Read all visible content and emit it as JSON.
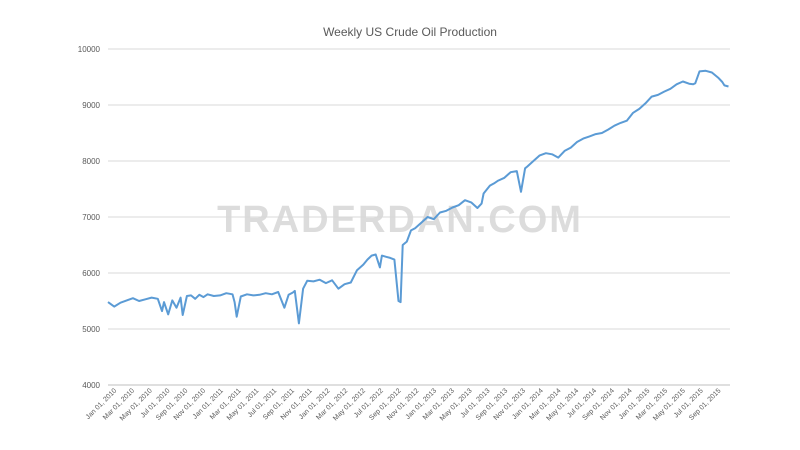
{
  "chart_data": {
    "type": "line",
    "title": "Weekly US Crude Oil Production",
    "xlabel": "",
    "ylabel": "",
    "ylim": [
      4000,
      10000
    ],
    "yticks": [
      "4000",
      "5000",
      "6000",
      "7000",
      "8000",
      "9000",
      "10000"
    ],
    "grid": true,
    "legend": "none",
    "watermark": "TRADERDAN.COM",
    "color": "#5b9bd5",
    "xlim": [
      "2010-01-01",
      "2015-09-30"
    ],
    "xtick_labels": [
      "Jan 01, 2010",
      "Mar 01, 2010",
      "May 01, 2010",
      "Jul 01, 2010",
      "Sep 01, 2010",
      "Nov 01, 2010",
      "Jan 01, 2011",
      "Mar 01, 2011",
      "May 01, 2011",
      "Jul 01, 2011",
      "Sep 01, 2011",
      "Nov 01, 2011",
      "Jan 01, 2012",
      "Mar 01, 2012",
      "May 01, 2012",
      "Jul 01, 2012",
      "Sep 01, 2012",
      "Nov 01, 2012",
      "Jan 01, 2013",
      "Mar 01, 2013",
      "May 01, 2013",
      "Jul 01, 2013",
      "Sep 01, 2013",
      "Nov 01, 2013",
      "Jan 01, 2014",
      "Mar 01, 2014",
      "May 01, 2014",
      "Jul 01, 2014",
      "Sep 01, 2014",
      "Nov 01, 2014",
      "Jan 01, 2015",
      "Mar 01, 2015",
      "May 01, 2015",
      "Jul 01, 2015",
      "Sep 01, 2015"
    ],
    "series": [
      {
        "name": "",
        "x": [
          "2010-01-01",
          "2010-01-22",
          "2010-02-12",
          "2010-03-05",
          "2010-03-26",
          "2010-04-16",
          "2010-05-07",
          "2010-05-28",
          "2010-06-18",
          "2010-07-02",
          "2010-07-09",
          "2010-07-23",
          "2010-08-06",
          "2010-08-20",
          "2010-09-03",
          "2010-09-10",
          "2010-09-24",
          "2010-10-08",
          "2010-10-22",
          "2010-11-05",
          "2010-11-19",
          "2010-12-03",
          "2010-12-24",
          "2011-01-14",
          "2011-02-04",
          "2011-02-25",
          "2011-03-04",
          "2011-03-11",
          "2011-03-25",
          "2011-04-15",
          "2011-05-06",
          "2011-05-27",
          "2011-06-17",
          "2011-07-08",
          "2011-07-29",
          "2011-08-19",
          "2011-09-02",
          "2011-09-16",
          "2011-09-23",
          "2011-10-07",
          "2011-10-21",
          "2011-11-04",
          "2011-11-25",
          "2011-12-16",
          "2012-01-06",
          "2012-01-27",
          "2012-02-17",
          "2012-03-09",
          "2012-03-30",
          "2012-04-20",
          "2012-05-11",
          "2012-05-25",
          "2012-06-08",
          "2012-06-22",
          "2012-07-06",
          "2012-07-13",
          "2012-07-27",
          "2012-08-10",
          "2012-08-24",
          "2012-09-07",
          "2012-09-14",
          "2012-09-21",
          "2012-10-05",
          "2012-10-19",
          "2012-11-02",
          "2012-11-23",
          "2012-12-14",
          "2013-01-04",
          "2013-01-25",
          "2013-02-15",
          "2013-03-08",
          "2013-03-29",
          "2013-04-19",
          "2013-05-10",
          "2013-05-31",
          "2013-06-14",
          "2013-06-21",
          "2013-07-12",
          "2013-07-26",
          "2013-08-09",
          "2013-08-30",
          "2013-09-20",
          "2013-10-11",
          "2013-10-25",
          "2013-11-08",
          "2013-11-15",
          "2013-12-06",
          "2013-12-27",
          "2014-01-17",
          "2014-02-07",
          "2014-02-28",
          "2014-03-21",
          "2014-04-11",
          "2014-05-02",
          "2014-05-23",
          "2014-06-13",
          "2014-07-04",
          "2014-07-25",
          "2014-08-15",
          "2014-09-05",
          "2014-09-26",
          "2014-10-17",
          "2014-11-07",
          "2014-11-28",
          "2014-12-19",
          "2015-01-09",
          "2015-01-30",
          "2015-02-20",
          "2015-03-13",
          "2015-04-03",
          "2015-04-24",
          "2015-05-15",
          "2015-05-29",
          "2015-06-05",
          "2015-06-19",
          "2015-07-10",
          "2015-07-31",
          "2015-08-21",
          "2015-09-04",
          "2015-09-11",
          "2015-09-25"
        ],
        "y": [
          5480,
          5400,
          5470,
          5510,
          5550,
          5500,
          5530,
          5560,
          5540,
          5320,
          5480,
          5260,
          5510,
          5380,
          5560,
          5250,
          5590,
          5600,
          5540,
          5610,
          5570,
          5620,
          5590,
          5600,
          5640,
          5620,
          5480,
          5220,
          5580,
          5620,
          5600,
          5610,
          5640,
          5620,
          5660,
          5380,
          5610,
          5650,
          5680,
          5100,
          5720,
          5860,
          5850,
          5880,
          5820,
          5870,
          5720,
          5800,
          5830,
          6050,
          6150,
          6240,
          6310,
          6330,
          6100,
          6310,
          6290,
          6270,
          6240,
          5500,
          5480,
          6500,
          6560,
          6760,
          6800,
          6900,
          7000,
          6960,
          7080,
          7110,
          7170,
          7210,
          7300,
          7260,
          7160,
          7240,
          7420,
          7560,
          7600,
          7650,
          7700,
          7800,
          7820,
          7450,
          7870,
          7900,
          8000,
          8100,
          8140,
          8120,
          8060,
          8180,
          8240,
          8340,
          8400,
          8440,
          8480,
          8500,
          8560,
          8630,
          8680,
          8720,
          8860,
          8930,
          9030,
          9150,
          9180,
          9240,
          9290,
          9370,
          9420,
          9380,
          9370,
          9390,
          9600,
          9610,
          9580,
          9490,
          9410,
          9350,
          9330
        ]
      }
    ]
  }
}
